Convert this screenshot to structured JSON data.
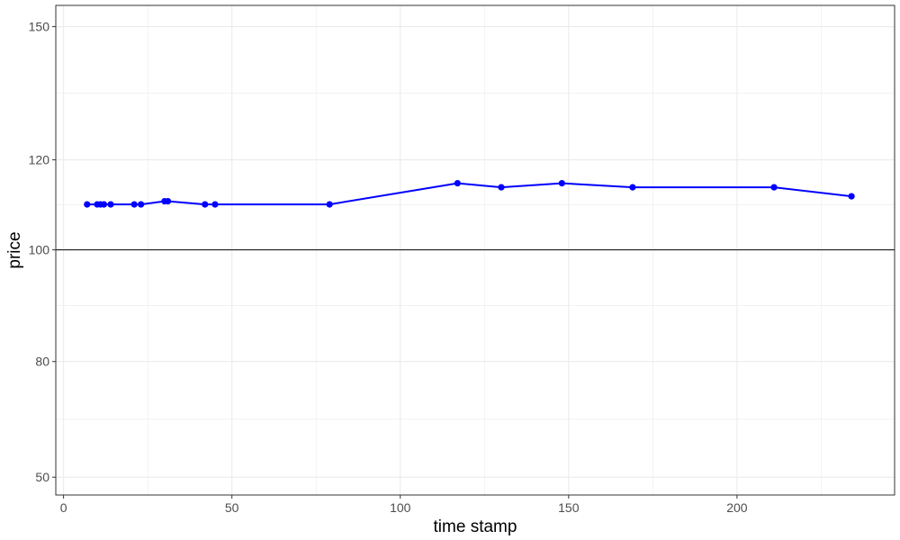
{
  "chart_data": {
    "type": "line",
    "title": "",
    "xlabel": "time stamp",
    "ylabel": "price",
    "xlim": [
      -2.3,
      246.8
    ],
    "ylim": [
      45,
      155
    ],
    "xticks": [
      0,
      50,
      100,
      150,
      200
    ],
    "xtick_labels": [
      "0",
      "50",
      "100",
      "150",
      "200"
    ],
    "yticks": [
      50,
      80,
      100,
      120,
      150
    ],
    "ytick_labels": [
      "50",
      "80",
      "100",
      "120",
      "150"
    ],
    "y_minor_gridlines": [
      65,
      90,
      110,
      135
    ],
    "x_minor_gridlines": [
      25,
      75,
      125,
      175,
      225
    ],
    "hline": 100,
    "grid": true,
    "series": [
      {
        "color": "#0000ff",
        "x": [
          7,
          10,
          11,
          12,
          14,
          21,
          23,
          30,
          31,
          42,
          45,
          79,
          117,
          130,
          148,
          169,
          211,
          234
        ],
        "y": [
          110.1,
          110.1,
          110.1,
          110.1,
          110.1,
          110.1,
          110.1,
          110.8,
          110.8,
          110.1,
          110.1,
          110.1,
          114.8,
          113.9,
          114.8,
          113.9,
          113.9,
          111.9
        ]
      }
    ]
  }
}
